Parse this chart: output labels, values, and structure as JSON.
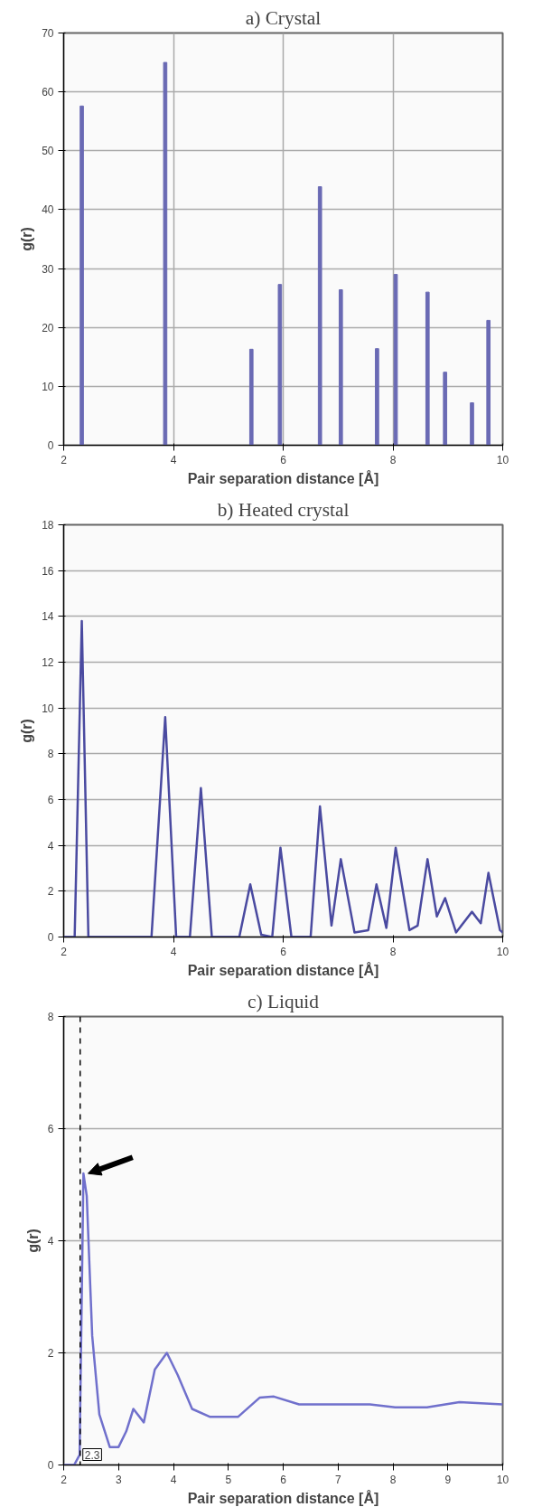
{
  "chart_data": [
    {
      "type": "bar",
      "title": "a) Crystal",
      "xlabel": "Pair separation distance [Å]",
      "ylabel": "g(r)",
      "x": [
        2.33,
        3.85,
        5.42,
        5.94,
        6.67,
        7.05,
        7.71,
        8.05,
        8.63,
        8.95,
        9.44,
        9.74
      ],
      "series": [
        {
          "color": "#6a6ab4",
          "values": [
            57.6,
            65,
            16.3,
            27.3,
            43.9,
            26.4,
            16.4,
            29,
            26,
            12.4,
            7.2,
            21.2
          ]
        }
      ],
      "xlim": [
        2,
        10
      ],
      "xticks": [
        2,
        4,
        6,
        8,
        10
      ],
      "ylim": [
        0,
        70
      ],
      "yticks": [
        0,
        10,
        20,
        30,
        40,
        50,
        60,
        70
      ],
      "grid": true
    },
    {
      "type": "line",
      "title": "b) Heated crystal",
      "xlabel": "Pair separation distance [Å]",
      "ylabel": "g(r)",
      "x": [
        2.0,
        2.2,
        2.33,
        2.45,
        3.6,
        3.85,
        4.05,
        4.3,
        4.5,
        4.7,
        5.2,
        5.4,
        5.6,
        5.8,
        5.95,
        6.15,
        6.5,
        6.67,
        6.88,
        7.05,
        7.3,
        7.55,
        7.7,
        7.88,
        8.05,
        8.3,
        8.45,
        8.63,
        8.8,
        8.95,
        9.15,
        9.44,
        9.6,
        9.74,
        9.95,
        10.0
      ],
      "series": [
        {
          "color": "#4a4aa0",
          "values": [
            0,
            0,
            13.8,
            0,
            0,
            9.6,
            0,
            0,
            6.5,
            0,
            0,
            2.3,
            0.1,
            0,
            3.9,
            0,
            0,
            5.7,
            0.5,
            3.4,
            0.2,
            0.3,
            2.3,
            0.4,
            3.9,
            0.3,
            0.5,
            3.4,
            0.9,
            1.7,
            0.2,
            1.1,
            0.6,
            2.8,
            0.3,
            0.2
          ]
        }
      ],
      "xlim": [
        2,
        10
      ],
      "xticks": [
        2,
        4,
        6,
        8,
        10
      ],
      "ylim": [
        0,
        18
      ],
      "yticks": [
        0,
        2,
        4,
        6,
        8,
        10,
        12,
        14,
        16,
        18
      ],
      "grid": "y"
    },
    {
      "type": "line",
      "title": "c) Liquid",
      "xlabel": "Pair separation distance [Å]",
      "ylabel": "g(r)",
      "x": [
        2.0,
        2.19,
        2.29,
        2.36,
        2.42,
        2.52,
        2.65,
        2.84,
        3.0,
        3.14,
        3.27,
        3.46,
        3.66,
        3.88,
        4.08,
        4.34,
        4.66,
        5.18,
        5.57,
        5.83,
        6.29,
        6.94,
        7.58,
        8.04,
        8.62,
        9.21,
        10.0
      ],
      "series": [
        {
          "color": "#7070cc",
          "values": [
            0,
            0,
            0.18,
            5.2,
            4.8,
            2.3,
            0.9,
            0.32,
            0.32,
            0.6,
            1.0,
            0.76,
            1.7,
            2.0,
            1.6,
            1.0,
            0.86,
            0.86,
            1.2,
            1.22,
            1.08,
            1.08,
            1.08,
            1.03,
            1.03,
            1.12,
            1.08
          ]
        }
      ],
      "xlim": [
        2,
        10
      ],
      "xticks": [
        2,
        3,
        4,
        5,
        6,
        7,
        8,
        9,
        10
      ],
      "ylim": [
        0,
        8
      ],
      "yticks": [
        0,
        2,
        4,
        6,
        8
      ],
      "grid": "y",
      "ref_lines": [
        {
          "axis": "x",
          "value": 2.3,
          "label": "2.3",
          "color": "#000000",
          "line_style": "dashed"
        }
      ]
    }
  ]
}
